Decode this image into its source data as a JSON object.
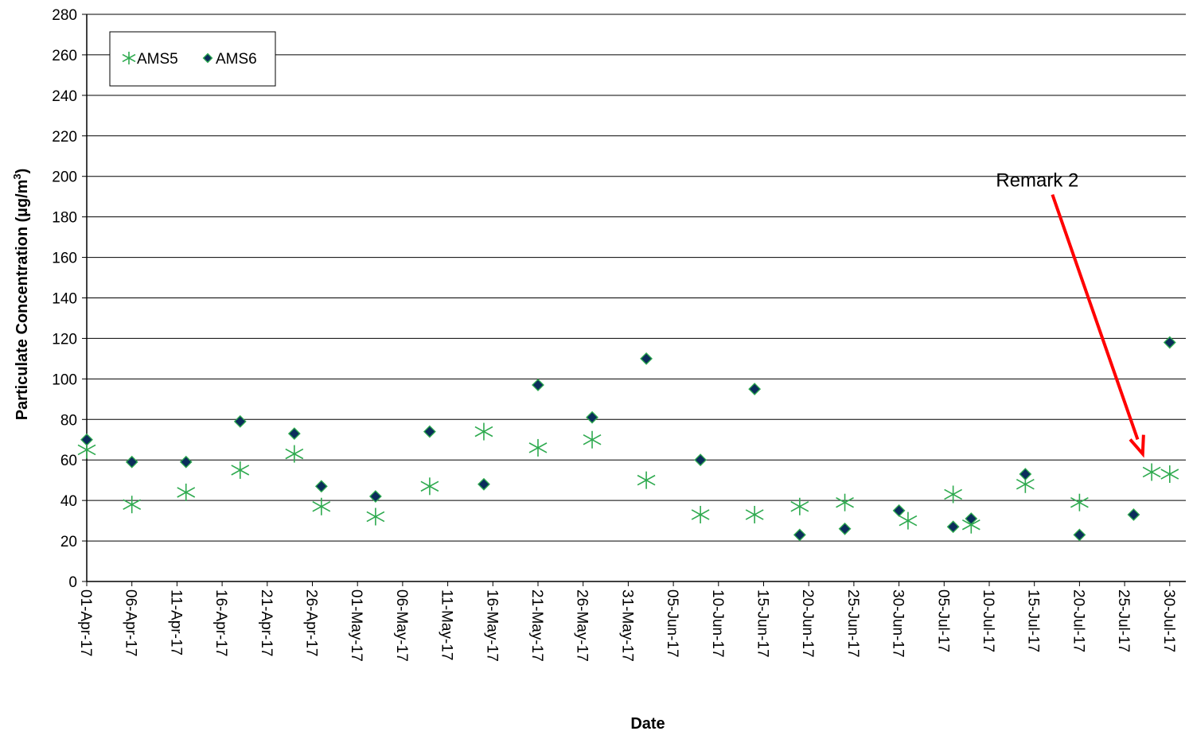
{
  "chart_data": {
    "type": "scatter",
    "xlabel": "Date",
    "ylabel": "Particulate Concentration (µg/m³)",
    "ylabel_main": "Particulate Concentration (µg/m",
    "ylabel_sup": "3",
    "ylabel_tail": ")",
    "xlim": [
      "2017-04-01",
      "2017-07-31"
    ],
    "ylim": [
      0,
      280
    ],
    "y_ticks": [
      0,
      20,
      40,
      60,
      80,
      100,
      120,
      140,
      160,
      180,
      200,
      220,
      240,
      260,
      280
    ],
    "x_ticks": [
      {
        "date": "2017-04-01",
        "label": "01-Apr-17"
      },
      {
        "date": "2017-04-06",
        "label": "06-Apr-17"
      },
      {
        "date": "2017-04-11",
        "label": "11-Apr-17"
      },
      {
        "date": "2017-04-16",
        "label": "16-Apr-17"
      },
      {
        "date": "2017-04-21",
        "label": "21-Apr-17"
      },
      {
        "date": "2017-04-26",
        "label": "26-Apr-17"
      },
      {
        "date": "2017-05-01",
        "label": "01-May-17"
      },
      {
        "date": "2017-05-06",
        "label": "06-May-17"
      },
      {
        "date": "2017-05-11",
        "label": "11-May-17"
      },
      {
        "date": "2017-05-16",
        "label": "16-May-17"
      },
      {
        "date": "2017-05-21",
        "label": "21-May-17"
      },
      {
        "date": "2017-05-26",
        "label": "26-May-17"
      },
      {
        "date": "2017-05-31",
        "label": "31-May-17"
      },
      {
        "date": "2017-06-05",
        "label": "05-Jun-17"
      },
      {
        "date": "2017-06-10",
        "label": "10-Jun-17"
      },
      {
        "date": "2017-06-15",
        "label": "15-Jun-17"
      },
      {
        "date": "2017-06-20",
        "label": "20-Jun-17"
      },
      {
        "date": "2017-06-25",
        "label": "25-Jun-17"
      },
      {
        "date": "2017-06-30",
        "label": "30-Jun-17"
      },
      {
        "date": "2017-07-05",
        "label": "05-Jul-17"
      },
      {
        "date": "2017-07-10",
        "label": "10-Jul-17"
      },
      {
        "date": "2017-07-15",
        "label": "15-Jul-17"
      },
      {
        "date": "2017-07-20",
        "label": "20-Jul-17"
      },
      {
        "date": "2017-07-25",
        "label": "25-Jul-17"
      },
      {
        "date": "2017-07-30",
        "label": "30-Jul-17"
      }
    ],
    "grid": true,
    "legend_position": "top-left",
    "series": [
      {
        "name": "AMS5",
        "marker": "asterisk",
        "color": "#2eaa4f",
        "points": [
          {
            "x": "2017-04-01",
            "y": 65
          },
          {
            "x": "2017-04-06",
            "y": 38
          },
          {
            "x": "2017-04-12",
            "y": 44
          },
          {
            "x": "2017-04-18",
            "y": 55
          },
          {
            "x": "2017-04-24",
            "y": 63
          },
          {
            "x": "2017-04-27",
            "y": 37
          },
          {
            "x": "2017-05-03",
            "y": 32
          },
          {
            "x": "2017-05-09",
            "y": 47
          },
          {
            "x": "2017-05-15",
            "y": 74
          },
          {
            "x": "2017-05-21",
            "y": 66
          },
          {
            "x": "2017-05-27",
            "y": 70
          },
          {
            "x": "2017-06-02",
            "y": 50
          },
          {
            "x": "2017-06-08",
            "y": 33
          },
          {
            "x": "2017-06-14",
            "y": 33
          },
          {
            "x": "2017-06-19",
            "y": 37
          },
          {
            "x": "2017-06-24",
            "y": 39
          },
          {
            "x": "2017-07-01",
            "y": 30
          },
          {
            "x": "2017-07-06",
            "y": 43
          },
          {
            "x": "2017-07-08",
            "y": 28
          },
          {
            "x": "2017-07-14",
            "y": 48
          },
          {
            "x": "2017-07-20",
            "y": 39
          },
          {
            "x": "2017-07-28",
            "y": 54
          },
          {
            "x": "2017-07-30",
            "y": 53
          }
        ]
      },
      {
        "name": "AMS6",
        "marker": "diamond",
        "color": "#0b2d5b",
        "points": [
          {
            "x": "2017-04-01",
            "y": 70
          },
          {
            "x": "2017-04-06",
            "y": 59
          },
          {
            "x": "2017-04-12",
            "y": 59
          },
          {
            "x": "2017-04-18",
            "y": 79
          },
          {
            "x": "2017-04-24",
            "y": 73
          },
          {
            "x": "2017-04-27",
            "y": 47
          },
          {
            "x": "2017-05-03",
            "y": 42
          },
          {
            "x": "2017-05-09",
            "y": 74
          },
          {
            "x": "2017-05-15",
            "y": 48
          },
          {
            "x": "2017-05-21",
            "y": 97
          },
          {
            "x": "2017-05-27",
            "y": 81
          },
          {
            "x": "2017-06-02",
            "y": 110
          },
          {
            "x": "2017-06-08",
            "y": 60
          },
          {
            "x": "2017-06-14",
            "y": 95
          },
          {
            "x": "2017-06-19",
            "y": 23
          },
          {
            "x": "2017-06-24",
            "y": 26
          },
          {
            "x": "2017-06-30",
            "y": 35
          },
          {
            "x": "2017-07-06",
            "y": 27
          },
          {
            "x": "2017-07-08",
            "y": 31
          },
          {
            "x": "2017-07-14",
            "y": 53
          },
          {
            "x": "2017-07-20",
            "y": 23
          },
          {
            "x": "2017-07-26",
            "y": 33
          },
          {
            "x": "2017-07-30",
            "y": 118
          }
        ]
      }
    ],
    "annotations": [
      {
        "text": "Remark 2",
        "color": "#ff0000",
        "arrow_tail": {
          "x": "2017-07-17",
          "y": 191
        },
        "arrow_head": {
          "x": "2017-07-27",
          "y": 63
        }
      }
    ]
  }
}
